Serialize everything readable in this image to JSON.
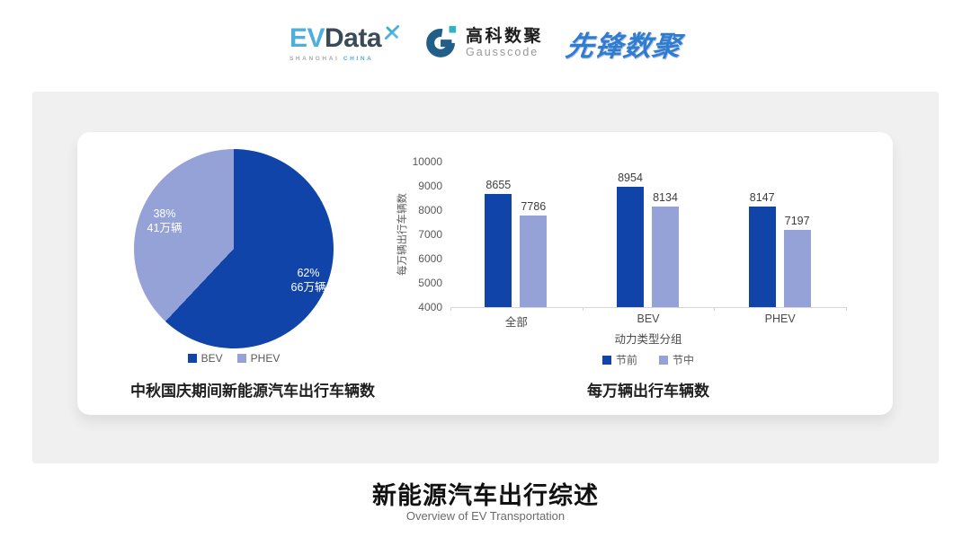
{
  "header": {
    "evdata": {
      "ev": "EV",
      "data": "Data",
      "sub_left": "SHANGHAI",
      "sub_right": "CHINA"
    },
    "gausscode": {
      "cn": "高科数聚",
      "en": "Gausscode"
    },
    "xianfeng": {
      "text": "先锋数聚"
    }
  },
  "colors": {
    "series_primary": "#1144A8",
    "series_secondary": "#95A2D8",
    "panel_bg": "#F0F0F0",
    "card_bg": "#FFFFFF",
    "evdata_cyan": "#4FAFDC",
    "evdata_dark": "#3B4A57",
    "gauss_navy": "#215E88",
    "gauss_teal": "#2FB4C4",
    "xianfeng_blue": "#2F7CD0",
    "axis_text": "#595959",
    "value_text": "#3D3D3D"
  },
  "chart_data": [
    {
      "type": "pie",
      "title": "中秋国庆期间新能源汽车出行车辆数",
      "unit": "万辆",
      "start_angle": "top",
      "direction": "clockwise",
      "slices": [
        {
          "label": "BEV",
          "percent": 62,
          "pct": "62%",
          "amount": "66万辆",
          "value": 66,
          "color": "#1144A8"
        },
        {
          "label": "PHEV",
          "percent": 38,
          "pct": "38%",
          "amount": "41万辆",
          "value": 41,
          "color": "#95A2D8"
        }
      ],
      "legend_position": "bottom"
    },
    {
      "type": "bar",
      "title": "每万辆出行车辆数",
      "categories": [
        "全部",
        "BEV",
        "PHEV"
      ],
      "series": [
        {
          "name": "节前",
          "values": [
            8655,
            8954,
            8147
          ],
          "color": "#1144A8"
        },
        {
          "name": "节中",
          "values": [
            7786,
            8134,
            7197
          ],
          "color": "#95A2D8"
        }
      ],
      "xlabel": "动力类型分组",
      "ylabel": "每万辆出行车辆数",
      "ylim": [
        4000,
        10000
      ],
      "ytick_step": 1000,
      "grid": false,
      "legend_position": "bottom"
    }
  ],
  "footer": {
    "title": "新能源汽车出行综述",
    "subtitle": "Overview of EV Transportation"
  }
}
